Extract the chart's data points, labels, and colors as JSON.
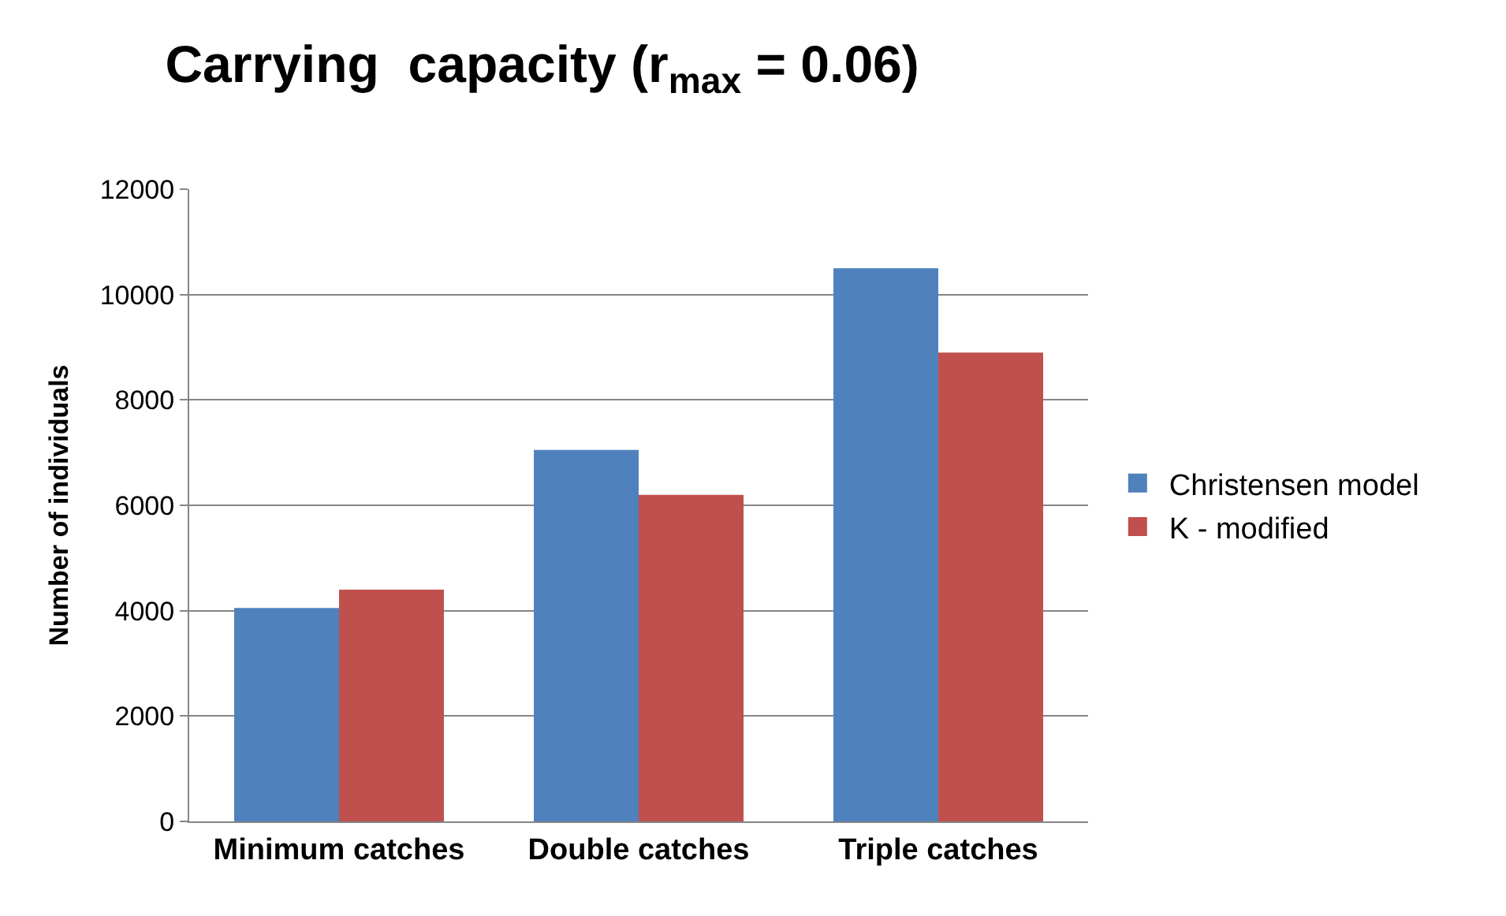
{
  "chart_data": {
    "type": "bar",
    "title": "Carrying  capacity (r$_{max}$ = 0.06)",
    "ylabel": "Number of individuals",
    "categories": [
      "Minimum catches",
      "Double catches",
      "Triple catches"
    ],
    "series": [
      {
        "name": "Christensen model",
        "color": "#4f81bd",
        "values": [
          4050,
          7050,
          10500
        ]
      },
      {
        "name": "K - modified",
        "color": "#c0504d",
        "values": [
          4400,
          6200,
          8900
        ]
      }
    ],
    "ylim": [
      0,
      12000
    ],
    "yticks": [
      0,
      2000,
      4000,
      6000,
      8000,
      10000,
      12000
    ],
    "grid": "y",
    "legend": "right"
  }
}
